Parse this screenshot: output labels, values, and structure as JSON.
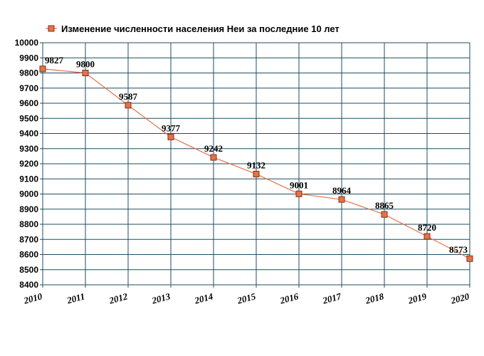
{
  "chart_data": {
    "type": "line",
    "title": "Изменение численности населения Неи за последние 10 лет",
    "x": [
      "2010",
      "2011",
      "2012",
      "2013",
      "2014",
      "2015",
      "2016",
      "2017",
      "2018",
      "2019",
      "2020"
    ],
    "series": [
      {
        "name": "Изменение численности населения Неи за последние 10 лет",
        "values": [
          9827,
          9800,
          9587,
          9377,
          9242,
          9132,
          9001,
          8964,
          8865,
          8720,
          8573
        ]
      }
    ],
    "yticks": [
      "10000",
      "9900",
      "9800",
      "9700",
      "9600",
      "9500",
      "9400",
      "9300",
      "9200",
      "9100",
      "9000",
      "8900",
      "8800",
      "8700",
      "8600",
      "8500",
      "8400"
    ],
    "ylim": [
      8400,
      10000
    ],
    "grid": true,
    "legend_position": "top-left",
    "colors": {
      "line": "#e2734a",
      "marker_fill": "#e2734a",
      "marker_stroke": "#8a2e12",
      "grid": "#1f4e5f"
    }
  }
}
